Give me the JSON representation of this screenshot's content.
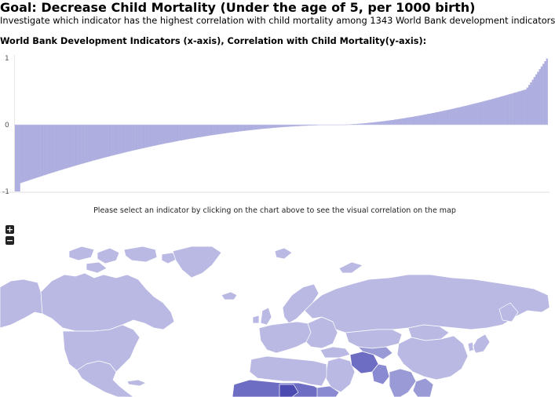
{
  "header": {
    "title": "Goal: Decrease Child Mortality (Under the age of 5, per 1000 birth)",
    "subtitle": "Investigate which indicator has the highest correlation with child mortality among 1343 World Bank development indicators"
  },
  "chart_heading": "World Bank Development Indicators (x-axis), Correlation with Child Mortality(y-axis):",
  "chart_data": {
    "type": "bar",
    "n_bars": 300,
    "ylim": [
      -1,
      1
    ],
    "y_ticks": [
      "1",
      "0",
      "-1"
    ],
    "bar_color": "#aeaee0",
    "bar_stroke": "#8c8cd0",
    "shape_note_values": {
      "min": -1.0,
      "max": 1.0
    }
  },
  "hint": "Please select an indicator by clicking on the chart above to see the visual correlation on the map",
  "map_controls": {
    "zoom_in": "+",
    "zoom_out": "−"
  },
  "colors": {
    "map_base": "#b9b9e3",
    "map_mid": "#9a9ad6",
    "map_dark": "#6d6dc4",
    "map_darkest": "#4a4ab0",
    "map_border": "#ffffff"
  }
}
